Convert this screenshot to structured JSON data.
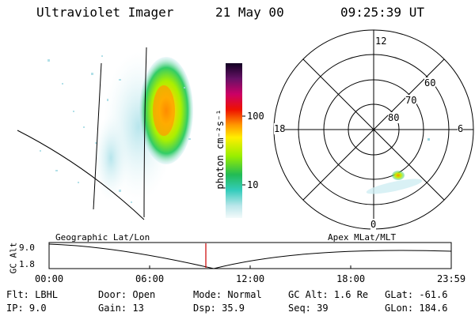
{
  "header": {
    "instrument": "Ultraviolet Imager",
    "date": "21 May 00",
    "time": "09:25:39 UT"
  },
  "colorbar": {
    "unit_label": "photon cm⁻²s⁻¹",
    "ticks": [
      "100",
      "10"
    ]
  },
  "polar_plot": {
    "mlt_labels": [
      "12",
      "18",
      "6",
      "0"
    ],
    "lat_labels": [
      "60",
      "70",
      "80"
    ]
  },
  "timeline": {
    "y_label": "GC Alt",
    "y_ticks": [
      "9.0",
      "1.8"
    ],
    "left_caption": "Geographic Lat/Lon",
    "right_caption": "Apex MLat/MLT",
    "x_ticks": [
      "00:00",
      "06:00",
      "12:00",
      "18:00",
      "23:59"
    ],
    "current_time_marker": "09:25:39"
  },
  "info": {
    "filter": "Flt: LBHL",
    "ip": "IP:  9.0",
    "door": "Door: Open",
    "gain": "Gain: 13",
    "mode": "Mode: Normal",
    "dsp": "Dsp:   35.9",
    "gc_alt": "GC Alt: 1.6 Re",
    "seq": "Seq: 39",
    "glat": "GLat:  -61.6",
    "glon": "GLon: 184.6"
  },
  "colors": {
    "background": "#ffffff",
    "marker": "#cc0000",
    "line": "#000000"
  }
}
